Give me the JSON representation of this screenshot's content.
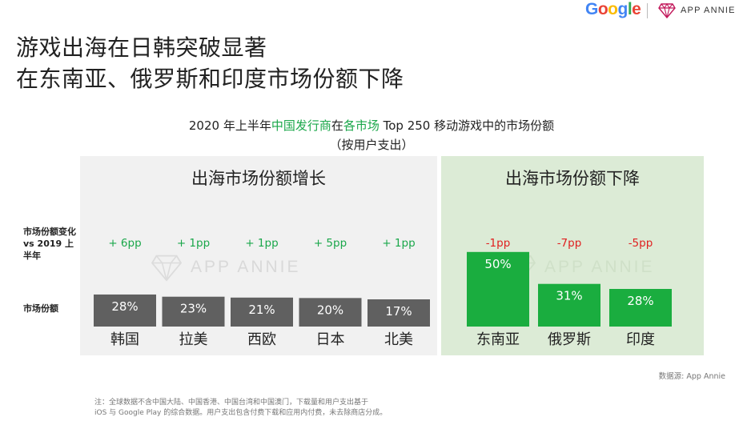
{
  "header": {
    "title_line1": "游戏出海在日韩突破显著",
    "title_line2": "在东南亚、俄罗斯和印度市场份额下降",
    "google_logo": "Google",
    "appannie_logo": "APP ANNIE",
    "appannie_icon": "diamond-logo-icon"
  },
  "chart_data": {
    "type": "bar",
    "title_parts": [
      "2020 年上半年",
      "中国发行商",
      "在",
      "各市场",
      " Top 250 移动游戏中的市场份额"
    ],
    "subtitle": "（按用户支出）",
    "row_labels": {
      "change": "市场份额变化 vs 2019 上半年",
      "share": "市场份额"
    },
    "groups": [
      {
        "name": "出海市场份额增长",
        "categories": [
          "韩国",
          "拉美",
          "西欧",
          "日本",
          "北美"
        ],
        "values": [
          28,
          23,
          21,
          20,
          17
        ],
        "value_labels": [
          "28%",
          "23%",
          "21%",
          "20%",
          "17%"
        ],
        "changes": [
          "+ 6pp",
          "+ 1pp",
          "+ 1pp",
          "+ 5pp",
          "+ 1pp"
        ],
        "bar_color": "#606060",
        "change_color": "#1aa74a"
      },
      {
        "name": "出海市场份额下降",
        "categories": [
          "东南亚",
          "俄罗斯",
          "印度"
        ],
        "values": [
          50,
          31,
          28
        ],
        "value_labels": [
          "50%",
          "31%",
          "28%"
        ],
        "changes": [
          "-1pp",
          "-7pp",
          "-5pp"
        ],
        "bar_color": "#1aad3f",
        "change_color": "#e02020"
      }
    ],
    "colors": {
      "growth_panel_bg": "#f1f1f1",
      "decline_panel_bg": "#dcebd6",
      "highlight_green": "#1aa74a"
    }
  },
  "watermark": "APP ANNIE",
  "source": "数据源: App Annie",
  "note_line1": "注：全球数据不含中国大陆、中国香港、中国台湾和中国澳门，下载量和用户支出基于",
  "note_line2": "iOS 与 Google Play 的综合数据。用户支出包含付费下载和应用内付费，未去除商店分成。"
}
